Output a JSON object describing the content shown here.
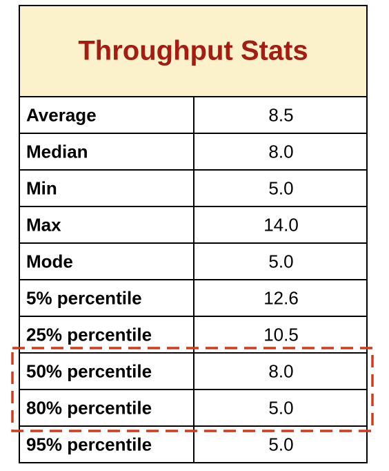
{
  "table": {
    "title": "Throughput Stats",
    "rows": [
      [
        "Average",
        "8.5"
      ],
      [
        "Median",
        "8.0"
      ],
      [
        "Min",
        "5.0"
      ],
      [
        "Max",
        "14.0"
      ],
      [
        "Mode",
        "5.0"
      ],
      [
        "5% percentile",
        "12.6"
      ],
      [
        "25% percentile",
        "10.5"
      ],
      [
        "50% percentile",
        "8.0"
      ],
      [
        "80% percentile",
        "5.0"
      ],
      [
        "95% percentile",
        "5.0"
      ]
    ]
  }
}
